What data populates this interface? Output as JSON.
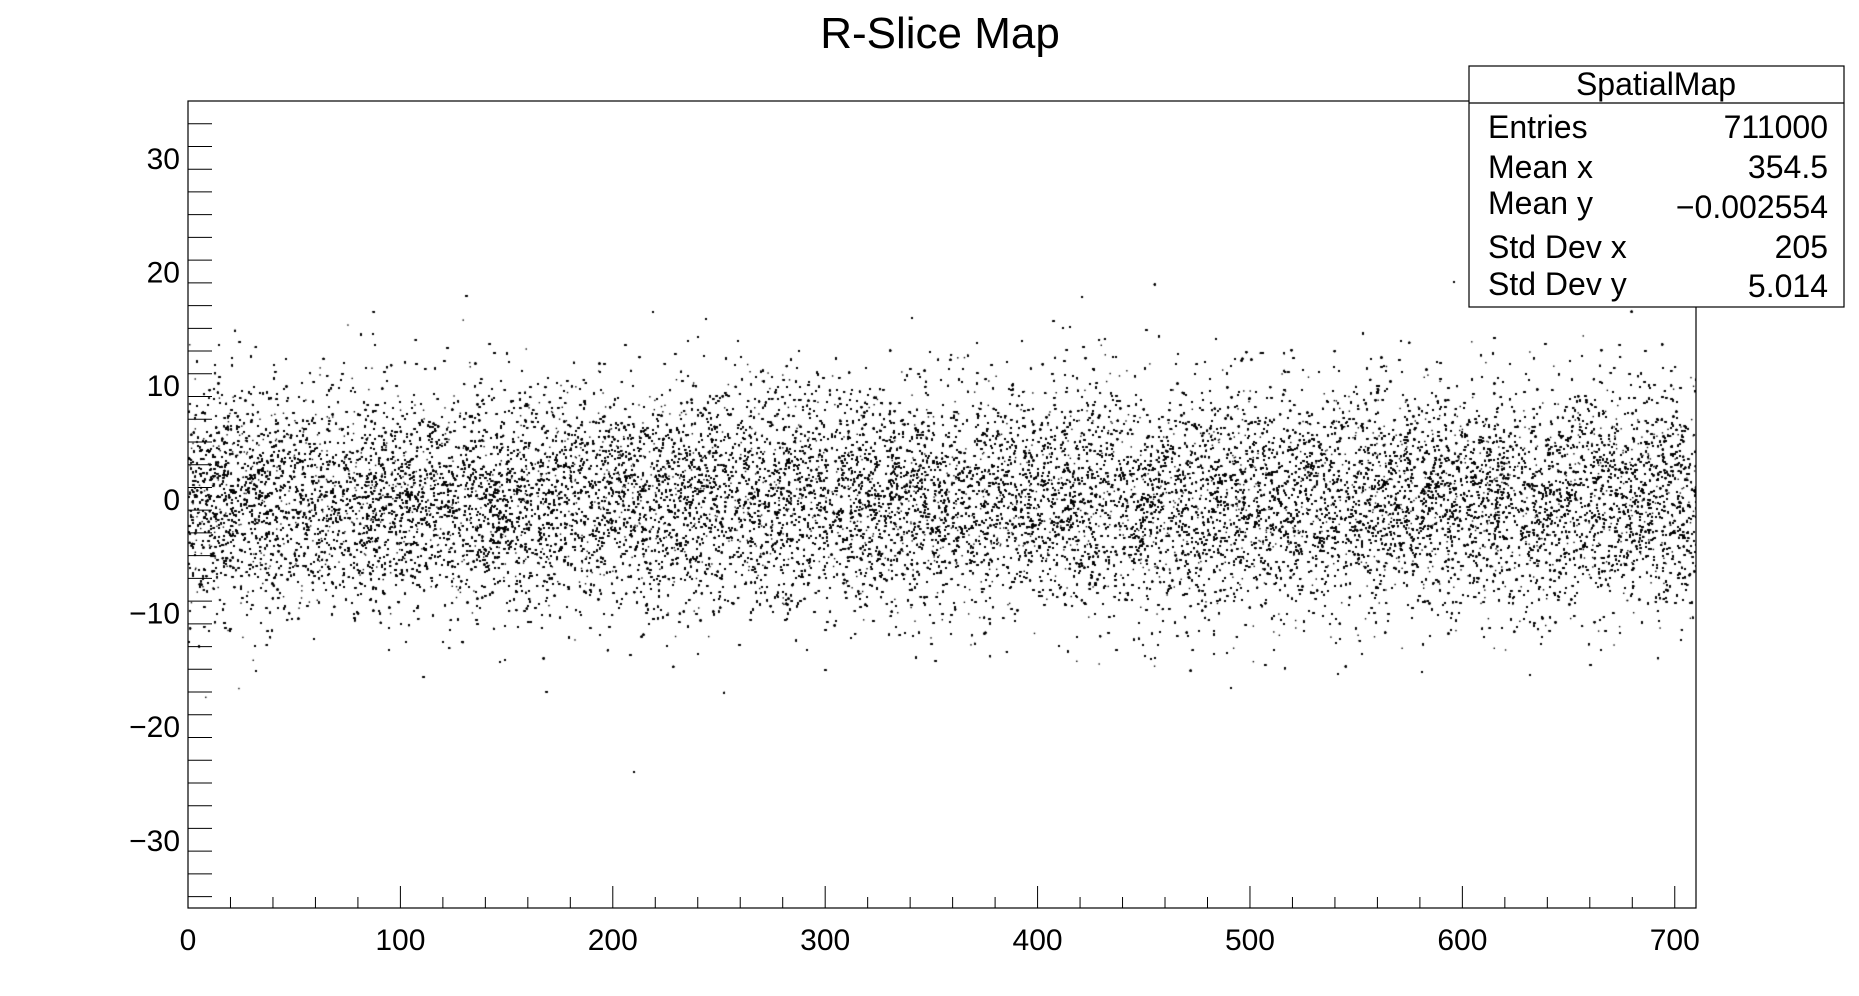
{
  "chart_data": {
    "type": "scatter",
    "title": "R-Slice Map",
    "xlabel": "",
    "ylabel": "",
    "xlim": [
      0,
      710
    ],
    "ylim": [
      -36,
      35
    ],
    "x_ticks": [
      0,
      100,
      200,
      300,
      400,
      500,
      600,
      700
    ],
    "x_tick_labels": [
      "0",
      "100",
      "200",
      "300",
      "400",
      "500",
      "600",
      "700"
    ],
    "y_ticks": [
      30,
      20,
      10,
      0,
      -10,
      -20,
      -30
    ],
    "y_tick_labels": [
      "30",
      "20",
      "10",
      "0",
      "−10",
      "−20",
      "−30"
    ],
    "grid": false,
    "marker_color": "#000000",
    "distribution": {
      "kind": "gaussian-band",
      "x_range": [
        0,
        710
      ],
      "y_center": 0,
      "y_sigma": 5.0
    },
    "stats_box": {
      "name": "SpatialMap",
      "placement": "top-right",
      "rows": [
        {
          "label": "Entries",
          "value": "711000"
        },
        {
          "label": "Mean x",
          "value": "354.5"
        },
        {
          "label": "Mean y",
          "value": "−0.002554"
        },
        {
          "label": "Std Dev x",
          "value": "205"
        },
        {
          "label": "Std Dev y",
          "value": "5.014"
        }
      ]
    }
  }
}
